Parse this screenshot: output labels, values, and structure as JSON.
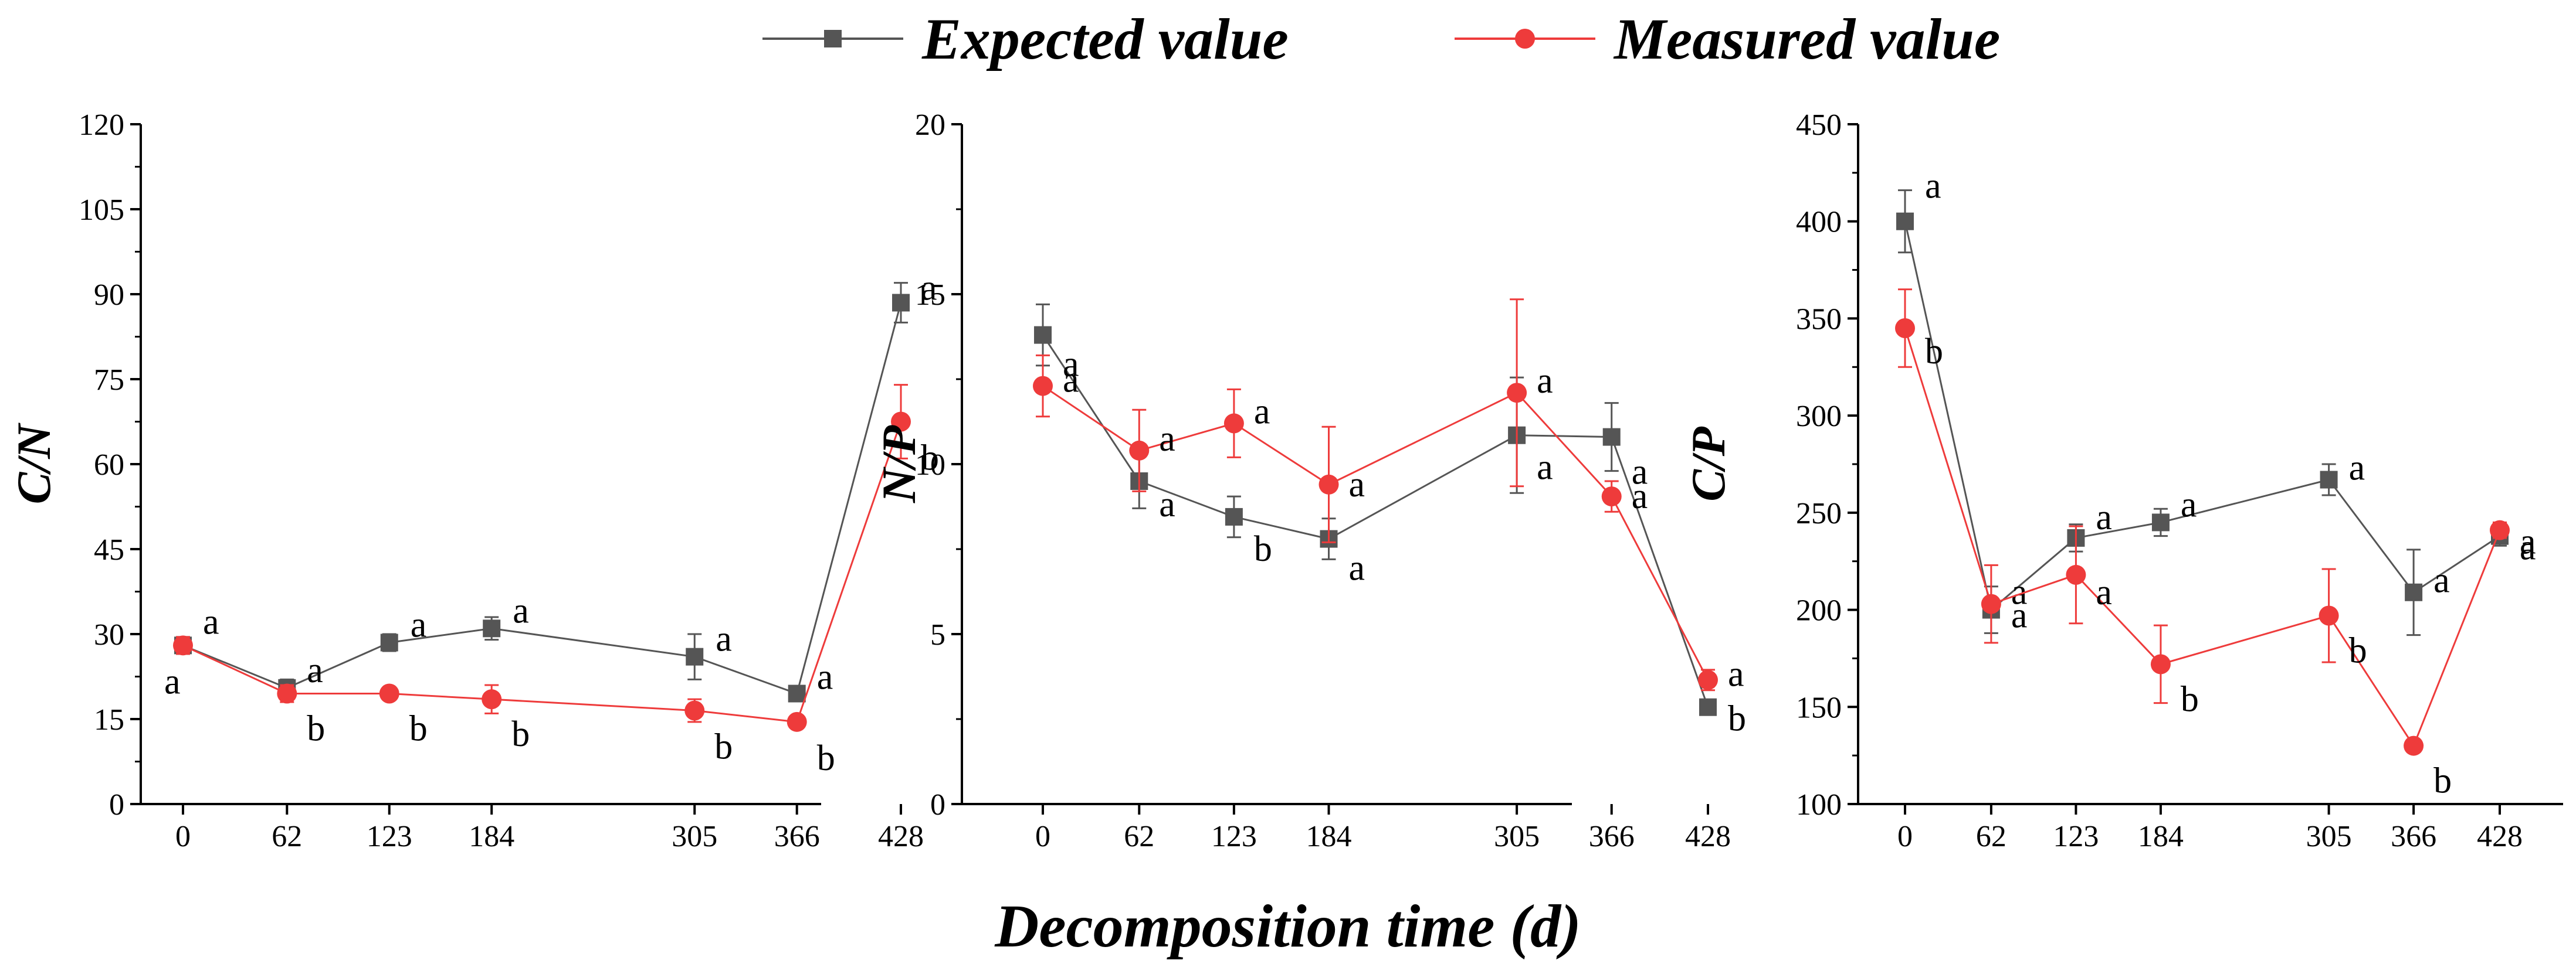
{
  "legend": {
    "series": [
      {
        "name": "Expected value",
        "color": "#555555",
        "marker": "square"
      },
      {
        "name": "Measured value",
        "color": "#ee3b3b",
        "marker": "circle"
      }
    ]
  },
  "xlabel": "Decomposition time (d)",
  "chart_data": [
    {
      "type": "line",
      "title": "",
      "xlabel": "Decomposition time (d)",
      "ylabel": "C/N",
      "x": [
        0,
        62,
        123,
        184,
        305,
        366,
        428
      ],
      "xticks": [
        "0",
        "62",
        "123",
        "184",
        "305",
        "366",
        "428"
      ],
      "ylim": [
        0,
        120
      ],
      "yticks": [
        0,
        15,
        30,
        45,
        60,
        75,
        90,
        105,
        120
      ],
      "series": [
        {
          "name": "Expected value",
          "values": [
            28,
            20.5,
            28.5,
            31,
            26,
            19.5,
            88.5
          ],
          "errors": [
            1.5,
            1.5,
            1.5,
            2,
            4,
            1,
            3.5
          ],
          "letters": [
            "a",
            "a",
            "a",
            "a",
            "a",
            "a",
            "a"
          ]
        },
        {
          "name": "Measured value",
          "values": [
            28,
            19.5,
            19.5,
            18.5,
            16.5,
            14.5,
            67.5
          ],
          "errors": [
            1.5,
            1.5,
            1,
            2.5,
            2,
            1,
            6.5
          ],
          "letters": [
            "a",
            "b",
            "b",
            "b",
            "b",
            "b",
            "b"
          ]
        }
      ]
    },
    {
      "type": "line",
      "title": "",
      "xlabel": "Decomposition time (d)",
      "ylabel": "N/P",
      "x": [
        0,
        62,
        123,
        184,
        305,
        366,
        428
      ],
      "xticks": [
        "0",
        "62",
        "123",
        "184",
        "305",
        "366",
        "428"
      ],
      "ylim": [
        0,
        20
      ],
      "yticks": [
        0,
        5,
        10,
        15,
        20
      ],
      "series": [
        {
          "name": "Expected value",
          "values": [
            13.8,
            9.5,
            8.45,
            7.8,
            10.85,
            10.8,
            2.85
          ],
          "errors": [
            0.9,
            0.8,
            0.6,
            0.6,
            1.7,
            1.0,
            0.2
          ],
          "letters": [
            "a",
            "a",
            "b",
            "a",
            "a",
            "a",
            "b"
          ]
        },
        {
          "name": "Measured value",
          "values": [
            12.3,
            10.4,
            11.2,
            9.4,
            12.1,
            9.05,
            3.65
          ],
          "errors": [
            0.9,
            1.2,
            1.0,
            1.7,
            2.75,
            0.45,
            0.3
          ],
          "letters": [
            "a",
            "a",
            "a",
            "a",
            "a",
            "a",
            "a"
          ]
        }
      ]
    },
    {
      "type": "line",
      "title": "",
      "xlabel": "Decomposition time (d)",
      "ylabel": "C/P",
      "x": [
        0,
        62,
        123,
        184,
        305,
        366,
        428
      ],
      "xticks": [
        "0",
        "62",
        "123",
        "184",
        "305",
        "366",
        "428"
      ],
      "ylim": [
        100,
        450
      ],
      "yticks": [
        100,
        150,
        200,
        250,
        300,
        350,
        400,
        450
      ],
      "series": [
        {
          "name": "Expected value",
          "values": [
            400,
            200,
            237,
            245,
            267,
            209,
            238
          ],
          "errors": [
            16,
            12,
            7,
            7,
            8,
            22,
            5
          ],
          "letters": [
            "a",
            "a",
            "a",
            "a",
            "a",
            "a",
            "a"
          ]
        },
        {
          "name": "Measured value",
          "values": [
            345,
            203,
            218,
            172,
            197,
            130,
            241
          ],
          "errors": [
            20,
            20,
            25,
            20,
            24,
            3,
            4
          ],
          "letters": [
            "b",
            "a",
            "a",
            "b",
            "b",
            "b",
            "a"
          ]
        }
      ]
    }
  ]
}
